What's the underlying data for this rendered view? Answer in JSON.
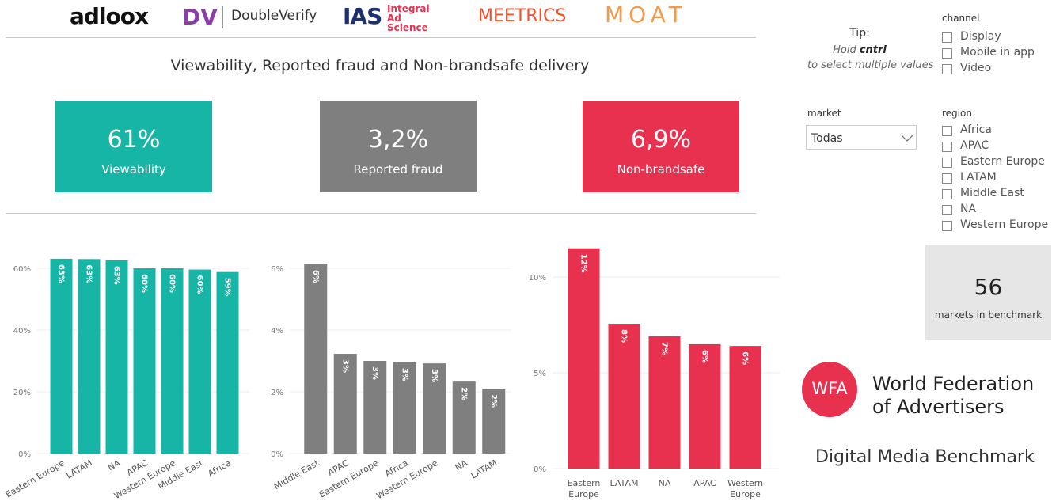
{
  "header": {
    "logos": {
      "adloox": "adloox",
      "dv": "DV",
      "doubleverify": "DoubleVerify",
      "ias": "IAS",
      "ias_name": "Integral Ad Science",
      "meetrics": "MEETRICS",
      "moat": "MOAT"
    },
    "title": "Viewability, Reported fraud and Non-brandsafe delivery"
  },
  "kpis": [
    {
      "value": "61%",
      "label": "Viewability"
    },
    {
      "value": "3,2%",
      "label": "Reported fraud"
    },
    {
      "value": "6,9%",
      "label": "Non-brandsafe"
    }
  ],
  "chart_data": [
    {
      "type": "bar",
      "categories": [
        "Eastern Europe",
        "LATAM",
        "NA",
        "APAC",
        "Western Europe",
        "Middle East",
        "Africa"
      ],
      "values": [
        63.1,
        63,
        62.6,
        60,
        60,
        59.6,
        58.8
      ],
      "value_labels": [
        "63%",
        "63%",
        "63%",
        "60%",
        "60%",
        "60%",
        "59%"
      ],
      "color": "#17b5a6",
      "ylim": [
        0,
        66
      ],
      "yticks": [
        {
          "value": 0,
          "label": "0%"
        },
        {
          "value": 20,
          "label": "20%"
        },
        {
          "value": 40,
          "label": "40%"
        },
        {
          "value": 60,
          "label": "60%"
        }
      ],
      "grid": true
    },
    {
      "type": "bar",
      "categories": [
        "Middle East",
        "APAC",
        "Eastern Europe",
        "Africa",
        "Western Europe",
        "NA",
        "LATAM"
      ],
      "values": [
        6.13,
        3.23,
        3.0,
        2.95,
        2.92,
        2.33,
        2.1
      ],
      "value_labels": [
        "6%",
        "3%",
        "3%",
        "3%",
        "3%",
        "2%",
        "2%"
      ],
      "color": "#7f7f7f",
      "ylim": [
        0,
        6.6
      ],
      "yticks": [
        {
          "value": 0,
          "label": "0%"
        },
        {
          "value": 2,
          "label": "2%"
        },
        {
          "value": 4,
          "label": "4%"
        },
        {
          "value": 6,
          "label": "6%"
        }
      ],
      "grid": true
    },
    {
      "type": "bar",
      "categories": [
        "Eastern Europe",
        "LATAM",
        "NA",
        "APAC",
        "Western Europe"
      ],
      "values": [
        11.5,
        7.56,
        6.9,
        6.49,
        6.4
      ],
      "value_labels": [
        "12%",
        "8%",
        "7%",
        "6%",
        "6%"
      ],
      "color": "#e8304f",
      "ylim": [
        0,
        12
      ],
      "yticks": [
        {
          "value": 0,
          "label": "0%"
        },
        {
          "value": 5,
          "label": "5%"
        },
        {
          "value": 10,
          "label": "10%"
        }
      ],
      "grid": true
    }
  ],
  "tip": {
    "title": "Tip:",
    "pre": "Hold",
    "key": "cntrl",
    "post": "to select multiple values"
  },
  "channel": {
    "title": "channel",
    "items": [
      "Display",
      "Mobile in app",
      "Video"
    ]
  },
  "market": {
    "title": "market",
    "selected": "Todas"
  },
  "region": {
    "title": "region",
    "items": [
      "Africa",
      "APAC",
      "Eastern Europe",
      "LATAM",
      "Middle East",
      "NA",
      "Western Europe"
    ]
  },
  "benchmark": {
    "value": 56,
    "label": "markets in benchmark"
  },
  "wfa": {
    "mark": "WFA",
    "line1": "World Federation",
    "line2": "of Advertisers",
    "product": "Digital Media Benchmark"
  }
}
